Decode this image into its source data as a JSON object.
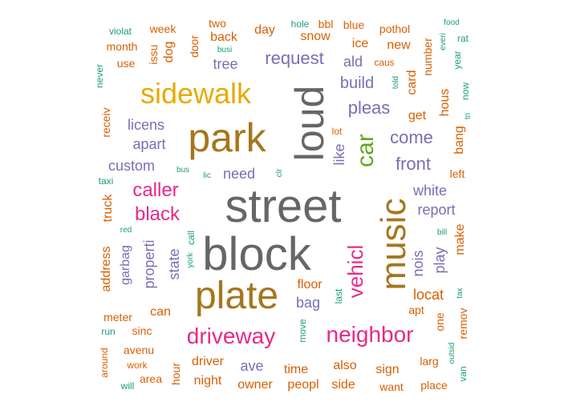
{
  "palette": {
    "gray": "#666666",
    "brown": "#A6761D",
    "gold": "#E6AB02",
    "orange": "#D95F02",
    "purple": "#7570B3",
    "pink": "#E7298A",
    "teal": "#1B9E77",
    "green": "#66A61E"
  },
  "words": [
    {
      "text": "street",
      "color": "gray"
    },
    {
      "text": "block",
      "color": "gray"
    },
    {
      "text": "loud",
      "color": "gray"
    },
    {
      "text": "park",
      "color": "brown"
    },
    {
      "text": "plate",
      "color": "brown"
    },
    {
      "text": "music",
      "color": "brown"
    },
    {
      "text": "sidewalk",
      "color": "gold"
    },
    {
      "text": "car",
      "color": "green"
    },
    {
      "text": "driveway",
      "color": "pink"
    },
    {
      "text": "neighbor",
      "color": "pink"
    },
    {
      "text": "vehicl",
      "color": "pink"
    },
    {
      "text": "caller",
      "color": "pink"
    },
    {
      "text": "black",
      "color": "pink"
    },
    {
      "text": "request",
      "color": "purple"
    },
    {
      "text": "pleas",
      "color": "purple"
    },
    {
      "text": "front",
      "color": "purple"
    },
    {
      "text": "come",
      "color": "purple"
    },
    {
      "text": "build",
      "color": "purple"
    },
    {
      "text": "custom",
      "color": "purple"
    },
    {
      "text": "apart",
      "color": "purple"
    },
    {
      "text": "licens",
      "color": "purple"
    },
    {
      "text": "need",
      "color": "purple"
    },
    {
      "text": "like",
      "color": "purple"
    },
    {
      "text": "white",
      "color": "purple"
    },
    {
      "text": "report",
      "color": "purple"
    },
    {
      "text": "nois",
      "color": "purple"
    },
    {
      "text": "play",
      "color": "purple"
    },
    {
      "text": "state",
      "color": "purple"
    },
    {
      "text": "properti",
      "color": "purple"
    },
    {
      "text": "bag",
      "color": "purple"
    },
    {
      "text": "ave",
      "color": "purple"
    },
    {
      "text": "tree",
      "color": "purple"
    },
    {
      "text": "garbag",
      "color": "purple"
    },
    {
      "text": "ald",
      "color": "purple"
    },
    {
      "text": "locat",
      "color": "orange"
    },
    {
      "text": "floor",
      "color": "orange"
    },
    {
      "text": "can",
      "color": "orange"
    },
    {
      "text": "time",
      "color": "orange"
    },
    {
      "text": "also",
      "color": "orange"
    },
    {
      "text": "sign",
      "color": "orange"
    },
    {
      "text": "driver",
      "color": "orange"
    },
    {
      "text": "night",
      "color": "orange"
    },
    {
      "text": "owner",
      "color": "orange"
    },
    {
      "text": "peopl",
      "color": "orange"
    },
    {
      "text": "side",
      "color": "orange"
    },
    {
      "text": "want",
      "color": "orange"
    },
    {
      "text": "place",
      "color": "orange"
    },
    {
      "text": "larg",
      "color": "orange"
    },
    {
      "text": "apt",
      "color": "orange"
    },
    {
      "text": "one",
      "color": "orange"
    },
    {
      "text": "remov",
      "color": "orange"
    },
    {
      "text": "make",
      "color": "orange"
    },
    {
      "text": "left",
      "color": "orange"
    },
    {
      "text": "bang",
      "color": "orange"
    },
    {
      "text": "hous",
      "color": "orange"
    },
    {
      "text": "get",
      "color": "orange"
    },
    {
      "text": "card",
      "color": "orange"
    },
    {
      "text": "new",
      "color": "orange"
    },
    {
      "text": "pothol",
      "color": "orange"
    },
    {
      "text": "number",
      "color": "orange"
    },
    {
      "text": "blue",
      "color": "orange"
    },
    {
      "text": "ice",
      "color": "orange"
    },
    {
      "text": "snow",
      "color": "orange"
    },
    {
      "text": "day",
      "color": "orange"
    },
    {
      "text": "back",
      "color": "orange"
    },
    {
      "text": "two",
      "color": "orange"
    },
    {
      "text": "door",
      "color": "orange"
    },
    {
      "text": "week",
      "color": "orange"
    },
    {
      "text": "dog",
      "color": "orange"
    },
    {
      "text": "issu",
      "color": "orange"
    },
    {
      "text": "month",
      "color": "orange"
    },
    {
      "text": "use",
      "color": "orange"
    },
    {
      "text": "receiv",
      "color": "orange"
    },
    {
      "text": "truck",
      "color": "orange"
    },
    {
      "text": "address",
      "color": "orange"
    },
    {
      "text": "meter",
      "color": "orange"
    },
    {
      "text": "sinc",
      "color": "orange"
    },
    {
      "text": "avenu",
      "color": "orange"
    },
    {
      "text": "work",
      "color": "orange"
    },
    {
      "text": "area",
      "color": "orange"
    },
    {
      "text": "hour",
      "color": "orange"
    },
    {
      "text": "around",
      "color": "orange"
    },
    {
      "text": "lot",
      "color": "orange"
    },
    {
      "text": "bbl",
      "color": "orange"
    },
    {
      "text": "caus",
      "color": "orange"
    },
    {
      "text": "violat",
      "color": "teal"
    },
    {
      "text": "never",
      "color": "teal"
    },
    {
      "text": "taxi",
      "color": "teal"
    },
    {
      "text": "red",
      "color": "teal"
    },
    {
      "text": "run",
      "color": "teal"
    },
    {
      "text": "will",
      "color": "teal"
    },
    {
      "text": "bus",
      "color": "teal"
    },
    {
      "text": "lic",
      "color": "teal"
    },
    {
      "text": "clr",
      "color": "teal"
    },
    {
      "text": "york",
      "color": "teal"
    },
    {
      "text": "call",
      "color": "teal"
    },
    {
      "text": "move",
      "color": "teal"
    },
    {
      "text": "last",
      "color": "teal"
    },
    {
      "text": "hole",
      "color": "teal"
    },
    {
      "text": "busi",
      "color": "teal"
    },
    {
      "text": "told",
      "color": "teal"
    },
    {
      "text": "food",
      "color": "teal"
    },
    {
      "text": "everi",
      "color": "teal"
    },
    {
      "text": "rat",
      "color": "teal"
    },
    {
      "text": "year",
      "color": "teal"
    },
    {
      "text": "now",
      "color": "teal"
    },
    {
      "text": "tri",
      "color": "teal"
    },
    {
      "text": "bill",
      "color": "teal"
    },
    {
      "text": "tax",
      "color": "teal"
    },
    {
      "text": "outsid",
      "color": "teal"
    },
    {
      "text": "van",
      "color": "teal"
    }
  ]
}
